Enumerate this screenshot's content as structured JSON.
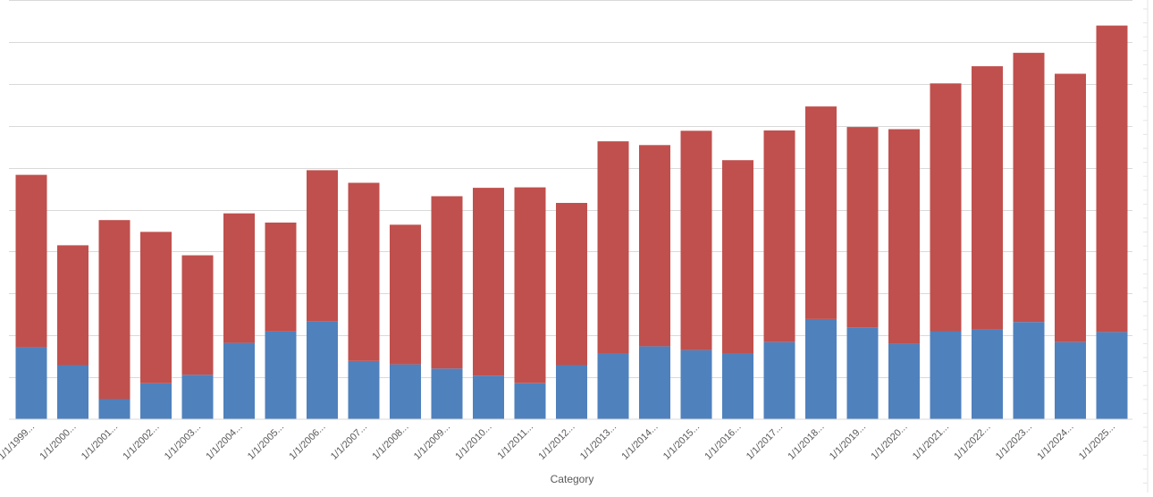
{
  "chart_data": {
    "type": "bar",
    "stacked": true,
    "xlabel": "Category",
    "categories": [
      "1/1/1999...",
      "1/1/2000...",
      "1/1/2001...",
      "1/1/2002...",
      "1/1/2003...",
      "1/1/2004...",
      "1/1/2005...",
      "1/1/2006...",
      "1/1/2007...",
      "1/1/2008...",
      "1/1/2009...",
      "1/1/2010...",
      "1/1/2011...",
      "1/1/2012...",
      "1/1/2013...",
      "1/1/2014...",
      "1/1/2015...",
      "1/1/2016...",
      "1/1/2017...",
      "1/1/2018...",
      "1/1/2019...",
      "1/1/2020...",
      "1/1/2021...",
      "1/1/2022...",
      "1/1/2023...",
      "1/1/2024...",
      "1/1/2025..."
    ],
    "series": [
      {
        "color": "#4f81bd",
        "values": [
          1.72,
          1.29,
          0.48,
          0.86,
          1.06,
          1.82,
          2.09,
          2.33,
          1.39,
          1.31,
          1.21,
          1.04,
          0.86,
          1.29,
          1.56,
          1.74,
          1.65,
          1.56,
          1.84,
          2.39,
          2.19,
          1.8,
          2.1,
          2.14,
          2.32,
          1.84,
          2.08
        ]
      },
      {
        "color": "#c0504d",
        "values": [
          4.11,
          2.86,
          4.27,
          3.61,
          2.85,
          3.09,
          2.6,
          3.61,
          4.25,
          3.33,
          4.11,
          4.48,
          4.67,
          3.87,
          5.07,
          4.8,
          5.23,
          4.62,
          5.05,
          5.07,
          4.78,
          5.12,
          5.91,
          6.28,
          6.42,
          6.4,
          7.31
        ]
      }
    ],
    "ylim": [
      0,
      10
    ],
    "grid": true,
    "legend": "none"
  }
}
